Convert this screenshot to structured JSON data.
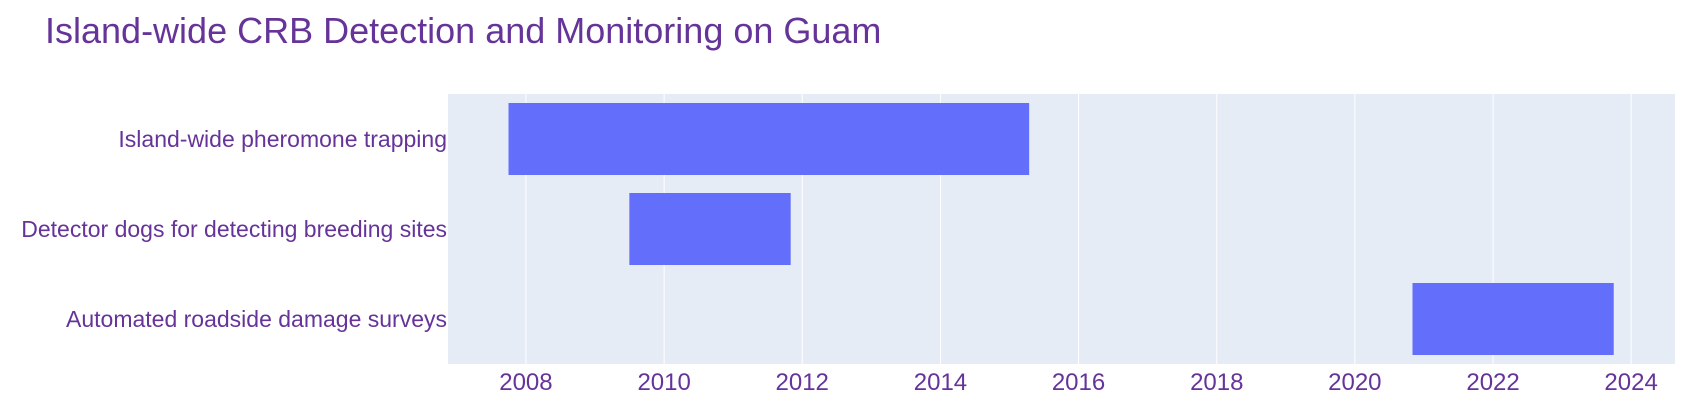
{
  "chart_data": {
    "type": "gantt",
    "title": "Island-wide CRB Detection and Monitoring on Guam",
    "xlabel": "",
    "ylabel": "",
    "x_type": "date",
    "xlim": [
      "2006-11-15",
      "2024-08-20"
    ],
    "x_ticks": [
      "2008",
      "2010",
      "2012",
      "2014",
      "2016",
      "2018",
      "2020",
      "2022",
      "2024"
    ],
    "grid": true,
    "legend": "none",
    "tasks": [
      {
        "label": "Island-wide pheromone trapping",
        "start": "2007-10-01",
        "end": "2015-04-15"
      },
      {
        "label": "Detector dogs for detecting breeding sites",
        "start": "2009-07-01",
        "end": "2011-11-01"
      },
      {
        "label": "Automated roadside damage surveys",
        "start": "2020-11-01",
        "end": "2023-10-01"
      }
    ],
    "colors": {
      "bar": "#636efa",
      "plot_bg": "#e5ecf6",
      "grid": "#ffffff",
      "text": "#663399"
    }
  }
}
